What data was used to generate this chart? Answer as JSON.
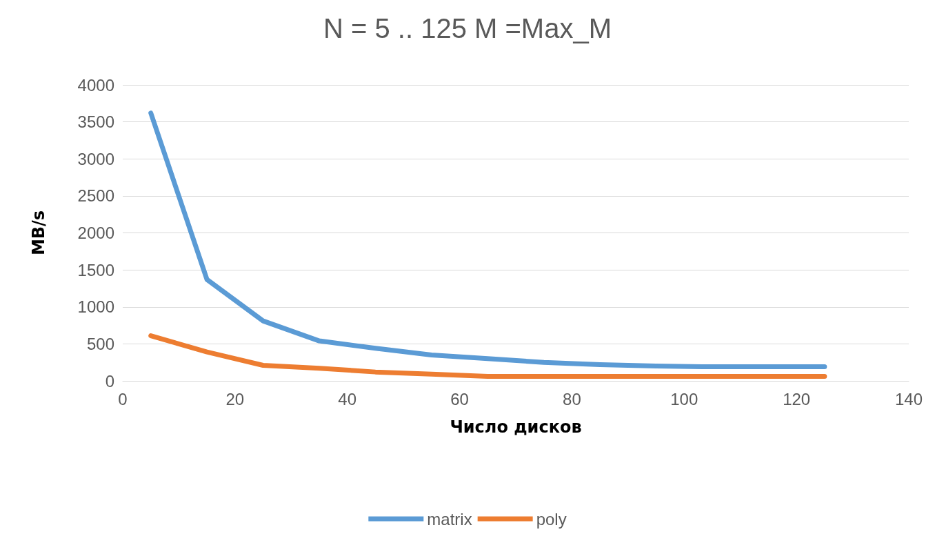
{
  "chart_data": {
    "type": "line",
    "title": "N = 5 .. 125 M =Max_M",
    "xlabel": "Число дисков",
    "ylabel": "MB/s",
    "x": [
      5,
      15,
      25,
      35,
      45,
      55,
      65,
      75,
      85,
      95,
      105,
      115,
      125
    ],
    "series": [
      {
        "name": "matrix",
        "color": "#5b9bd5",
        "values": [
          3620,
          1370,
          810,
          540,
          440,
          350,
          300,
          250,
          220,
          200,
          190,
          190,
          190
        ]
      },
      {
        "name": "poly",
        "color": "#ed7d31",
        "values": [
          610,
          390,
          210,
          170,
          120,
          90,
          60,
          60,
          60,
          60,
          60,
          60,
          60
        ]
      }
    ],
    "xlim": [
      0,
      140
    ],
    "xticks": [
      0,
      20,
      40,
      60,
      80,
      100,
      120,
      140
    ],
    "ylim": [
      0,
      4000
    ],
    "yticks": [
      0,
      500,
      1000,
      1500,
      2000,
      2500,
      3000,
      3500,
      4000
    ],
    "grid": "y",
    "legend": "bottom",
    "marker": "none",
    "line_style": "solid"
  }
}
